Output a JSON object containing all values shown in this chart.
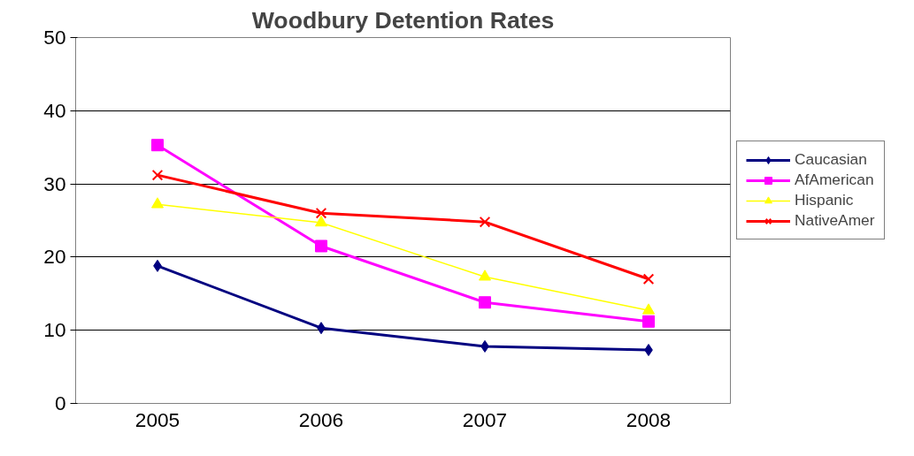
{
  "chart_data": {
    "type": "line",
    "title": "Woodbury Detention Rates",
    "categories": [
      "2005",
      "2006",
      "2007",
      "2008"
    ],
    "series": [
      {
        "name": "Caucasian",
        "color": "#000080",
        "marker": "diamond",
        "values": [
          18.8,
          10.3,
          7.8,
          7.3
        ]
      },
      {
        "name": "AfAmerican",
        "color": "#ff00ff",
        "marker": "square",
        "values": [
          35.3,
          21.5,
          13.8,
          11.2
        ]
      },
      {
        "name": "Hispanic",
        "color": "#ffff00",
        "marker": "triangle",
        "values": [
          27.2,
          24.7,
          17.3,
          12.7
        ]
      },
      {
        "name": "NativeAmer",
        "color": "#ff0000",
        "marker": "x",
        "values": [
          31.2,
          26.0,
          24.8,
          17.0
        ]
      }
    ],
    "ylim": [
      0,
      50
    ],
    "yticks": [
      0,
      10,
      20,
      30,
      40,
      50
    ],
    "grid": "y",
    "legend": "right",
    "line_style": "solid"
  }
}
